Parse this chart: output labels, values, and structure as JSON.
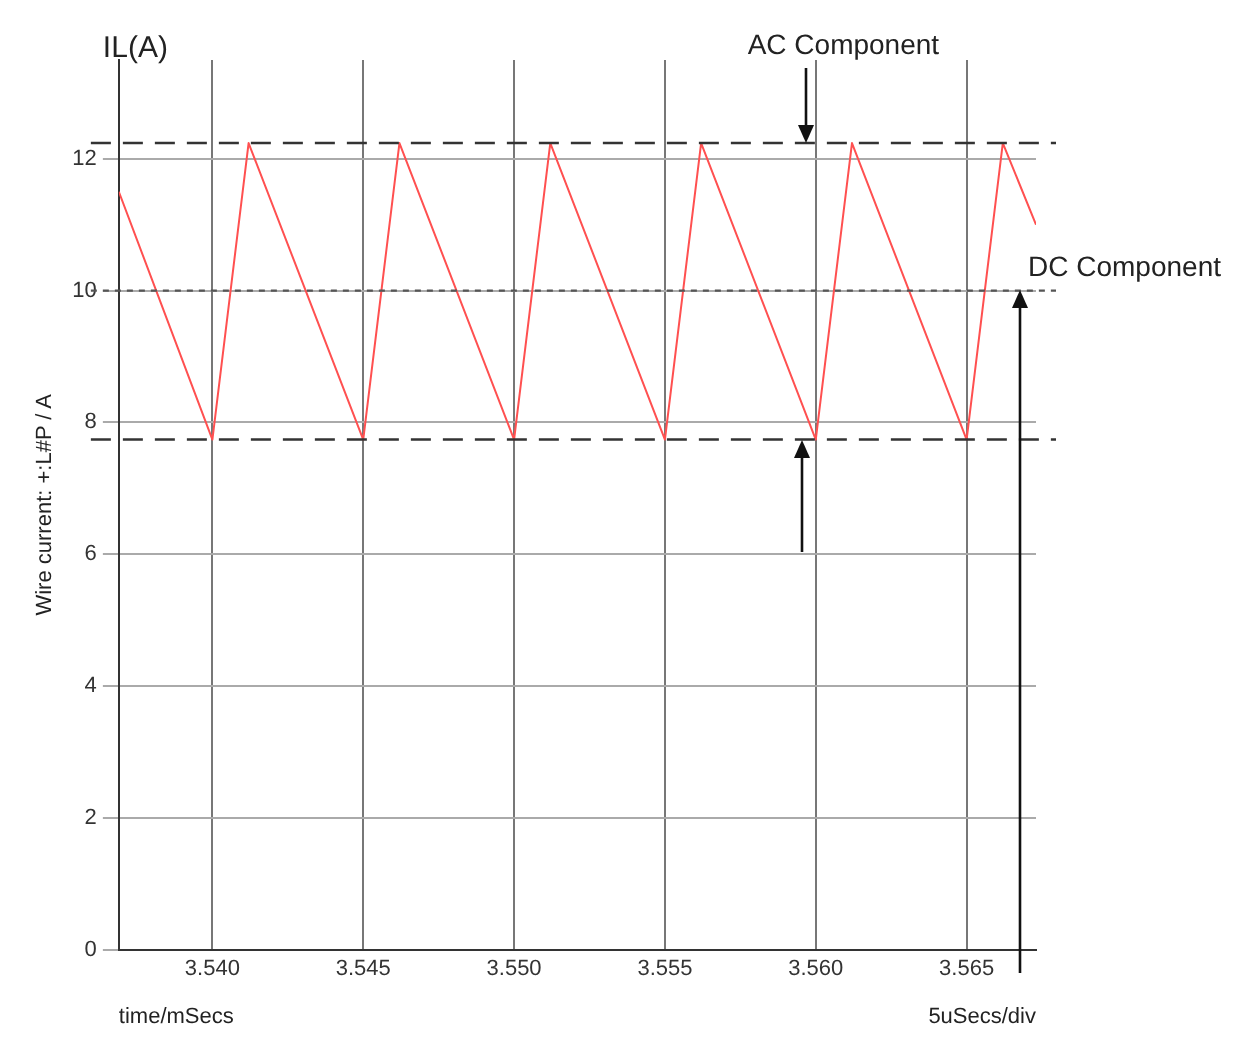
{
  "chart_data": {
    "type": "line",
    "title": "IL(A)",
    "ylabel": "Wire current: +:L#P / A",
    "annotations": [
      "AC Component",
      "time/mSecs",
      "5uSecs/div"
    ],
    "x": [
      3.5369,
      3.54,
      3.5412,
      3.545,
      3.5462,
      3.55,
      3.5512,
      3.555,
      3.5562,
      3.56,
      3.5612,
      3.565,
      3.5662,
      3.5673
    ],
    "series": [
      {
        "color": "#ff5050",
        "values": [
          11.5,
          7.74,
          12.24,
          7.74,
          12.24,
          7.74,
          12.24,
          7.74,
          12.24,
          7.74,
          12.24,
          7.74,
          12.24,
          11.0
        ]
      }
    ],
    "xlim": [
      3.5369,
      3.5673
    ],
    "ylim": [
      0,
      13.5
    ],
    "xticks": [
      {
        "value": 3.54,
        "label": "3.540"
      },
      {
        "value": 3.545,
        "label": "3.545"
      },
      {
        "value": 3.55,
        "label": "3.550"
      },
      {
        "value": 3.555,
        "label": "3.555"
      },
      {
        "value": 3.56,
        "label": "3.560"
      },
      {
        "value": 3.565,
        "label": "3.565"
      }
    ],
    "yticks": [
      0,
      2,
      4,
      6,
      8,
      10,
      12
    ],
    "ref_lines": [
      {
        "axis": "y",
        "value": 12.24,
        "line_style": "dashed",
        "color": "#333333"
      },
      {
        "axis": "y",
        "value": 10,
        "label": "DC Component",
        "line_style": "dotted",
        "color": "#555555"
      },
      {
        "axis": "y",
        "value": 7.74,
        "line_style": "dashed",
        "color": "#333333"
      }
    ],
    "grid": true,
    "legend": false,
    "marker": "none",
    "line_style": "solid"
  }
}
